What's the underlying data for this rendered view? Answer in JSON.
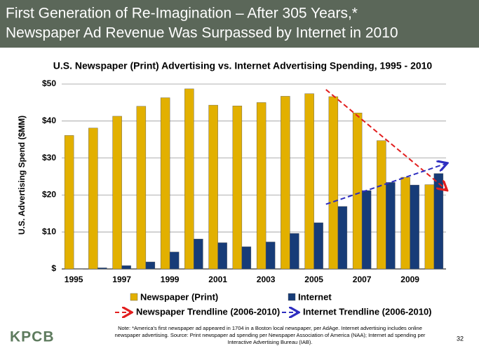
{
  "header": {
    "title_lines": [
      "First Generation of Re-Imagination – After 305 Years,*",
      "Newspaper Ad Revenue Was Surpassed by Internet in 2010"
    ]
  },
  "chart_data": {
    "type": "bar",
    "title": "U.S. Newspaper (Print) Advertising vs. Internet Advertising Spending, 1995 - 2010",
    "y_label": "U.S. Advertising Spend ($MM)",
    "categories": [
      "1995",
      null,
      "1997",
      null,
      "1999",
      null,
      "2001",
      null,
      "2003",
      null,
      "2005",
      null,
      "2007",
      null,
      "2009",
      null
    ],
    "series": [
      {
        "name": "Newspaper (Print)",
        "color": "#e2b000",
        "values": [
          36.1,
          38.1,
          41.3,
          44.0,
          46.3,
          48.7,
          44.3,
          44.1,
          45.0,
          46.7,
          47.4,
          46.6,
          42.2,
          34.7,
          24.8,
          22.8
        ]
      },
      {
        "name": "Internet",
        "color": "#173c78",
        "values": [
          0.1,
          0.3,
          0.9,
          1.9,
          4.6,
          8.1,
          7.1,
          6.0,
          7.3,
          9.6,
          12.5,
          16.9,
          21.2,
          23.4,
          22.7,
          25.8
        ]
      }
    ],
    "trendlines": [
      {
        "name": "Newspaper Trendline (2006-2010)",
        "color": "#e21e1e",
        "values": [
          null,
          null,
          null,
          null,
          null,
          null,
          null,
          null,
          null,
          null,
          null,
          48.5,
          null,
          null,
          null,
          21.5
        ]
      },
      {
        "name": "Internet Trendline (2006-2010)",
        "color": "#2e2ec0",
        "values": [
          null,
          null,
          null,
          null,
          null,
          null,
          null,
          null,
          null,
          null,
          null,
          17.5,
          null,
          null,
          null,
          28.5
        ]
      }
    ],
    "ylim": [
      0,
      50
    ],
    "yticks": [
      {
        "value": 0,
        "label": "$"
      },
      {
        "value": 10,
        "label": "$10"
      },
      {
        "value": 20,
        "label": "$20"
      },
      {
        "value": 30,
        "label": "$30"
      },
      {
        "value": 40,
        "label": "$40"
      },
      {
        "value": 50,
        "label": "$50"
      }
    ],
    "grid": true
  },
  "footer": {
    "logo": "KPCB",
    "note_lines": [
      "Note: *America's first newspaper ad appeared in 1704 in a Boston local newspaper, per AdAge. Internet advertising includes online",
      "newspaper advertising.  Source: Print newspaper ad spending per Newspaper Association of America (NAA); Internet ad spending per",
      "Interactive Advertising Bureau (IAB)."
    ],
    "page": "32"
  }
}
